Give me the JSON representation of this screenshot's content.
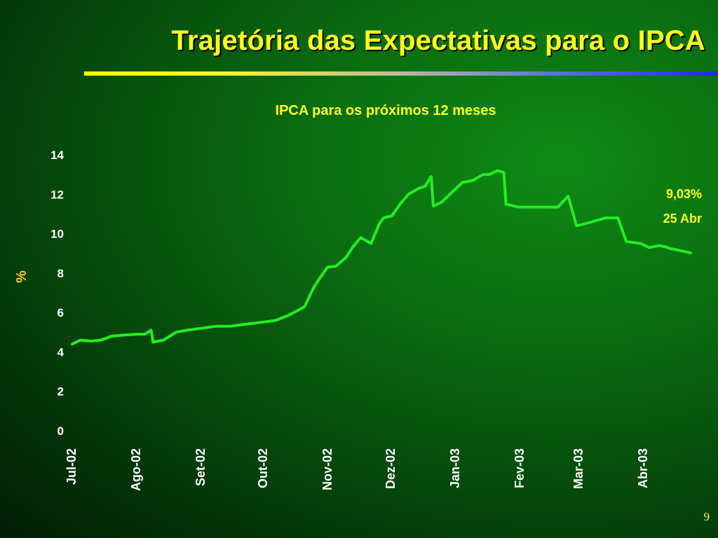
{
  "slide": {
    "title": "Trajetória das Expectativas para o IPCA",
    "page_number": "9"
  },
  "colors": {
    "title": "#ffff1a",
    "line": "#22ee22",
    "axis_label": "#ffcc00",
    "tick_text": "#ffffff"
  },
  "chart_data": {
    "type": "line",
    "title": "IPCA para os próximos 12 meses",
    "ylabel": "%",
    "xlabel": "",
    "ylim": [
      0,
      14
    ],
    "yticks": [
      "0",
      "2",
      "4",
      "6",
      "8",
      "10",
      "12",
      "14"
    ],
    "x_tick_labels": [
      "Jul-02",
      "Ago-02",
      "Set-02",
      "Out-02",
      "Nov-02",
      "Dez-02",
      "Jan-03",
      "Fev-03",
      "Mar-03",
      "Abr-03"
    ],
    "grid": false,
    "legend": "none",
    "series": [
      {
        "x": [
          "2002-07-01",
          "2002-07-05",
          "2002-07-10",
          "2002-07-15",
          "2002-07-20",
          "2002-07-25",
          "2002-08-01",
          "2002-08-05",
          "2002-08-08",
          "2002-08-09",
          "2002-08-14",
          "2002-08-20",
          "2002-08-25",
          "2002-09-01",
          "2002-09-08",
          "2002-09-15",
          "2002-09-22",
          "2002-09-30",
          "2002-10-07",
          "2002-10-14",
          "2002-10-21",
          "2002-10-25",
          "2002-10-28",
          "2002-11-01",
          "2002-11-05",
          "2002-11-10",
          "2002-11-13",
          "2002-11-17",
          "2002-11-22",
          "2002-11-26",
          "2002-11-28",
          "2002-12-02",
          "2002-12-06",
          "2002-12-10",
          "2002-12-15",
          "2002-12-18",
          "2002-12-21",
          "2002-12-22",
          "2002-12-26",
          "2002-12-31",
          "2003-01-05",
          "2003-01-10",
          "2003-01-15",
          "2003-01-18",
          "2003-01-22",
          "2003-01-25",
          "2003-01-26",
          "2003-02-01",
          "2003-02-10",
          "2003-02-17",
          "2003-02-20",
          "2003-02-24",
          "2003-02-25",
          "2003-03-01",
          "2003-03-05",
          "2003-03-15",
          "2003-03-20",
          "2003-03-21",
          "2003-03-25",
          "2003-04-01",
          "2003-04-05",
          "2003-04-10",
          "2003-04-14",
          "2003-04-15",
          "2003-04-25"
        ],
        "values": [
          4.4,
          4.6,
          4.55,
          4.6,
          4.8,
          4.85,
          4.9,
          4.9,
          5.1,
          4.5,
          4.6,
          5.0,
          5.1,
          5.2,
          5.3,
          5.3,
          5.4,
          5.5,
          5.6,
          5.9,
          6.3,
          7.2,
          7.7,
          8.3,
          8.35,
          8.8,
          9.3,
          9.8,
          9.5,
          10.5,
          10.8,
          10.9,
          11.5,
          12.0,
          12.3,
          12.4,
          12.9,
          11.4,
          11.6,
          12.1,
          12.6,
          12.7,
          13.0,
          13.0,
          13.2,
          13.1,
          11.5,
          11.35,
          11.35,
          11.35,
          11.35,
          11.8,
          11.9,
          10.4,
          10.5,
          10.8,
          10.8,
          10.8,
          9.6,
          9.5,
          9.3,
          9.4,
          9.3,
          9.25,
          9.03
        ]
      }
    ],
    "annotations": [
      "9,03%",
      "25 Abr"
    ]
  }
}
